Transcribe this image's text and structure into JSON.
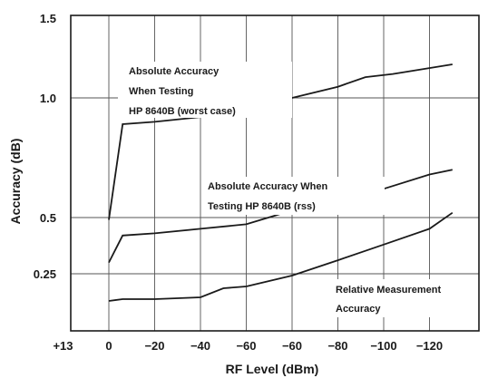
{
  "chart_data": {
    "type": "line",
    "title": "",
    "xlabel": "RF Level (dBm)",
    "ylabel": "Accuracy (dB)",
    "x_ticks": [
      "+13",
      "0",
      "−20",
      "−40",
      "−60",
      "−60",
      "−80",
      "−100",
      "−120"
    ],
    "y_ticks": [
      {
        "label": "1.5",
        "value": 1.5
      },
      {
        "label": "1.0",
        "value": 1.0
      },
      {
        "label": "0.5",
        "value": 0.5
      },
      {
        "label": "0.25",
        "value": 0.25
      }
    ],
    "ylim": [
      0,
      1.5
    ],
    "grid": true,
    "series": [
      {
        "name": "Absolute Accuracy When Testing HP 8640B (worst case)",
        "x_index": [
          1,
          1.3,
          2,
          3,
          3.4,
          4.5,
          5,
          6,
          6.6,
          7.2,
          8.5
        ],
        "values": [
          0.49,
          0.89,
          0.9,
          0.92,
          0.93,
          0.98,
          1.0,
          1.07,
          1.13,
          1.15,
          1.21
        ]
      },
      {
        "name": "Absolute Accuracy When Testing HP 8640B (rss)",
        "x_index": [
          1,
          1.3,
          2,
          3,
          4,
          5,
          6,
          7,
          8,
          8.5
        ],
        "values": [
          0.3,
          0.42,
          0.43,
          0.45,
          0.47,
          0.53,
          0.56,
          0.62,
          0.68,
          0.7
        ]
      },
      {
        "name": "Relative Measurement Accuracy",
        "x_index": [
          1,
          1.3,
          2,
          3,
          3.5,
          4,
          5,
          6,
          7,
          8,
          8.5
        ],
        "values": [
          0.1,
          0.11,
          0.11,
          0.12,
          0.17,
          0.18,
          0.24,
          0.31,
          0.38,
          0.45,
          0.52
        ]
      }
    ],
    "annotations": {
      "worst": [
        "Absolute Accuracy",
        "When Testing",
        "HP 8640B (worst case)"
      ],
      "rss": [
        "Absolute Accuracy When",
        "Testing HP 8640B (rss)"
      ],
      "relative": [
        "Relative Measurement",
        "Accuracy"
      ]
    }
  }
}
